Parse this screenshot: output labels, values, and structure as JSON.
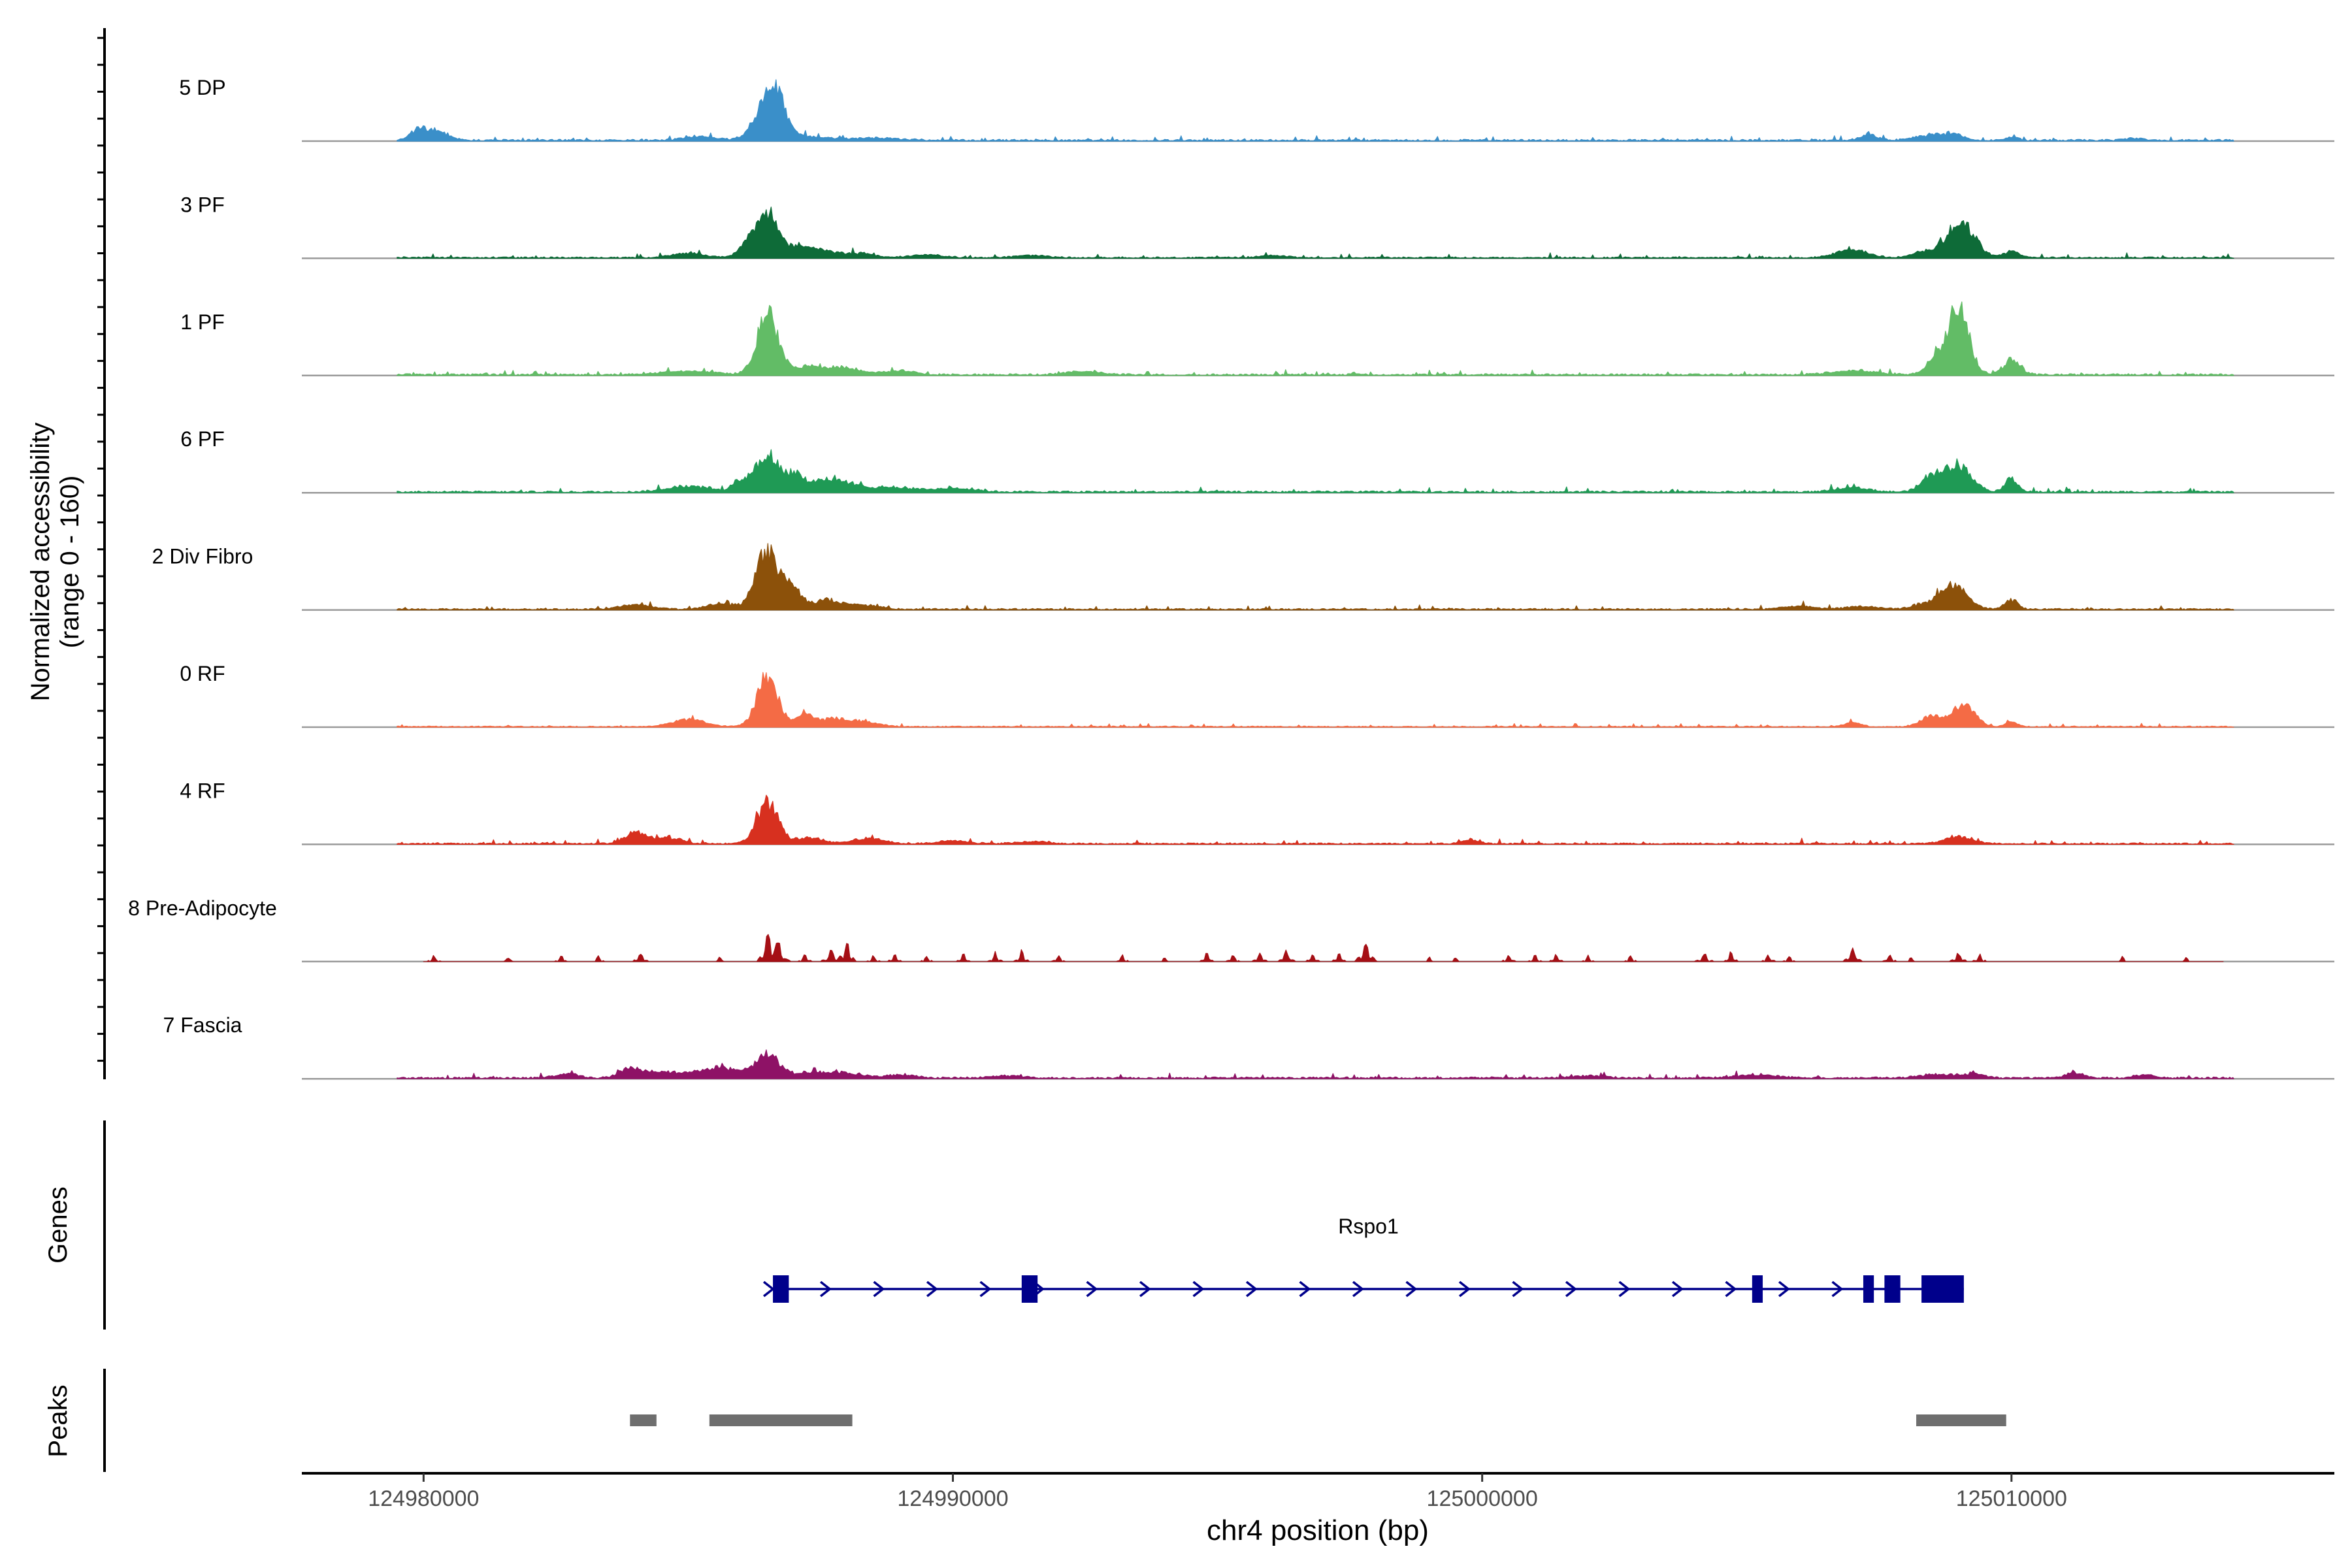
{
  "chart_data": {
    "type": "area",
    "title": "",
    "ylabel_line1": "Normalized accessibility",
    "ylabel_line2": "(range 0 - 160)",
    "xlabel": "chr4 position (bp)",
    "xlim": [
      124977700,
      125016100
    ],
    "x_ticks": [
      124980000,
      124990000,
      125000000,
      125010000
    ],
    "x_tick_labels": [
      "124980000",
      "124990000",
      "125000000",
      "125010000"
    ],
    "track_range": [
      0,
      160
    ],
    "tracks": [
      {
        "name": "5 DP",
        "color": "#3A8FC9",
        "baseline": 2.5,
        "noise": 2.5,
        "sparse": false,
        "start": 124979500,
        "end": 125014200,
        "peaks": [
          [
            124979900,
            150,
            10
          ],
          [
            124980200,
            250,
            13
          ],
          [
            124985200,
            300,
            5
          ],
          [
            124986500,
            230,
            52
          ],
          [
            124986700,
            140,
            30
          ],
          [
            124987000,
            500,
            6
          ],
          [
            124988500,
            500,
            3
          ],
          [
            125007300,
            150,
            8
          ],
          [
            125008500,
            300,
            7
          ],
          [
            125008900,
            200,
            6
          ],
          [
            125010000,
            120,
            4
          ],
          [
            125012300,
            150,
            3
          ]
        ]
      },
      {
        "name": "3 PF",
        "color": "#0E6B38",
        "baseline": 2,
        "noise": 2.5,
        "sparse": false,
        "start": 124979500,
        "end": 125014200,
        "peaks": [
          [
            124985000,
            300,
            6
          ],
          [
            124986100,
            150,
            15
          ],
          [
            124986500,
            220,
            60
          ],
          [
            124987100,
            150,
            14
          ],
          [
            124987500,
            250,
            10
          ],
          [
            124988200,
            300,
            6
          ],
          [
            124989500,
            300,
            4
          ],
          [
            124991500,
            300,
            3
          ],
          [
            124996000,
            250,
            3
          ],
          [
            125007000,
            300,
            10
          ],
          [
            125008400,
            250,
            8
          ],
          [
            125009000,
            250,
            35
          ],
          [
            125009200,
            200,
            15
          ],
          [
            125010000,
            150,
            8
          ]
        ]
      },
      {
        "name": "1 PF",
        "color": "#62BC66",
        "baseline": 2.5,
        "noise": 2.5,
        "sparse": false,
        "start": 124979500,
        "end": 125014200,
        "peaks": [
          [
            124985000,
            500,
            5
          ],
          [
            124986500,
            200,
            80
          ],
          [
            124987300,
            300,
            12
          ],
          [
            124988000,
            300,
            8
          ],
          [
            124989000,
            300,
            5
          ],
          [
            124992500,
            300,
            5
          ],
          [
            125007000,
            400,
            6
          ],
          [
            125008600,
            200,
            20
          ],
          [
            125009000,
            200,
            85
          ],
          [
            125010000,
            150,
            20
          ]
        ]
      },
      {
        "name": "6 PF",
        "color": "#1F9A55",
        "baseline": 2.5,
        "noise": 2.5,
        "sparse": false,
        "start": 124979500,
        "end": 125014200,
        "peaks": [
          [
            124985000,
            400,
            8
          ],
          [
            124986000,
            150,
            15
          ],
          [
            124986500,
            220,
            50
          ],
          [
            124987000,
            150,
            20
          ],
          [
            124987500,
            300,
            15
          ],
          [
            124988000,
            300,
            8
          ],
          [
            124988800,
            400,
            6
          ],
          [
            124990000,
            400,
            5
          ],
          [
            125007000,
            300,
            6
          ],
          [
            125008500,
            200,
            20
          ],
          [
            125009000,
            250,
            35
          ],
          [
            125010000,
            120,
            18
          ]
        ]
      },
      {
        "name": "2 Div Fibro",
        "color": "#8C510A",
        "baseline": 2,
        "noise": 2.5,
        "sparse": false,
        "start": 124979500,
        "end": 125014200,
        "peaks": [
          [
            124984000,
            300,
            6
          ],
          [
            124985600,
            250,
            8
          ],
          [
            124986500,
            220,
            80
          ],
          [
            124987000,
            150,
            25
          ],
          [
            124987600,
            250,
            12
          ],
          [
            124988300,
            300,
            6
          ],
          [
            125006000,
            300,
            4
          ],
          [
            125007200,
            300,
            4
          ],
          [
            125008300,
            200,
            6
          ],
          [
            125008900,
            250,
            35
          ],
          [
            125010000,
            120,
            12
          ]
        ]
      },
      {
        "name": "0 RF",
        "color": "#F46B45",
        "baseline": 1.5,
        "noise": 2,
        "sparse": false,
        "start": 124979500,
        "end": 125014200,
        "peaks": [
          [
            124985000,
            300,
            10
          ],
          [
            124986500,
            200,
            65
          ],
          [
            124987200,
            150,
            15
          ],
          [
            124987700,
            300,
            10
          ],
          [
            124988300,
            300,
            6
          ],
          [
            125007000,
            150,
            6
          ],
          [
            125008500,
            200,
            15
          ],
          [
            125009100,
            200,
            30
          ],
          [
            125010000,
            120,
            6
          ]
        ]
      },
      {
        "name": "4 RF",
        "color": "#D7301F",
        "baseline": 2,
        "noise": 2.5,
        "sparse": false,
        "start": 124979500,
        "end": 125014200,
        "peaks": [
          [
            124984000,
            200,
            15
          ],
          [
            124984600,
            250,
            8
          ],
          [
            124986500,
            200,
            55
          ],
          [
            124987300,
            250,
            8
          ],
          [
            124988400,
            300,
            7
          ],
          [
            124990000,
            300,
            4
          ],
          [
            124991500,
            300,
            3
          ],
          [
            124999800,
            150,
            5
          ],
          [
            125009000,
            250,
            10
          ]
        ]
      },
      {
        "name": "8 Pre-Adipocyte",
        "color": "#A50F15",
        "baseline": 0,
        "noise": 0,
        "sparse": true,
        "start": 124980000,
        "end": 125014000,
        "peaks": [
          [
            124980200,
            60,
            8
          ],
          [
            124981600,
            80,
            6
          ],
          [
            124982600,
            60,
            8
          ],
          [
            124983300,
            60,
            7
          ],
          [
            124984100,
            70,
            12
          ],
          [
            124985600,
            60,
            6
          ],
          [
            124986500,
            80,
            40
          ],
          [
            124986700,
            90,
            25
          ],
          [
            124987200,
            60,
            10
          ],
          [
            124987700,
            90,
            15
          ],
          [
            124988000,
            70,
            30
          ],
          [
            124988500,
            60,
            8
          ],
          [
            124988900,
            60,
            10
          ],
          [
            124989500,
            60,
            8
          ],
          [
            124990200,
            60,
            10
          ],
          [
            124990800,
            60,
            12
          ],
          [
            124991300,
            60,
            14
          ],
          [
            124992000,
            60,
            10
          ],
          [
            124993200,
            60,
            8
          ],
          [
            124994000,
            60,
            6
          ],
          [
            124994800,
            60,
            12
          ],
          [
            124995300,
            60,
            10
          ],
          [
            124995800,
            60,
            14
          ],
          [
            124996300,
            70,
            16
          ],
          [
            124996800,
            60,
            10
          ],
          [
            124997300,
            60,
            12
          ],
          [
            124997800,
            80,
            30
          ],
          [
            124999000,
            60,
            6
          ],
          [
            124999500,
            60,
            6
          ],
          [
            125000500,
            60,
            10
          ],
          [
            125001000,
            60,
            8
          ],
          [
            125001400,
            60,
            10
          ],
          [
            125002000,
            60,
            8
          ],
          [
            125002800,
            60,
            8
          ],
          [
            125004200,
            80,
            10
          ],
          [
            125004700,
            60,
            12
          ],
          [
            125005400,
            60,
            10
          ],
          [
            125005800,
            60,
            8
          ],
          [
            125007000,
            80,
            18
          ],
          [
            125007700,
            60,
            10
          ],
          [
            125008100,
            60,
            6
          ],
          [
            125009000,
            70,
            12
          ],
          [
            125009400,
            60,
            10
          ],
          [
            125012100,
            60,
            6
          ],
          [
            125013300,
            60,
            6
          ]
        ]
      },
      {
        "name": "7 Fascia",
        "color": "#8E1266",
        "baseline": 2.5,
        "noise": 2.5,
        "sparse": false,
        "start": 124979500,
        "end": 125014200,
        "peaks": [
          [
            124982700,
            200,
            6
          ],
          [
            124983900,
            200,
            12
          ],
          [
            124984500,
            300,
            8
          ],
          [
            124985300,
            300,
            9
          ],
          [
            124985800,
            300,
            10
          ],
          [
            124986500,
            200,
            35
          ],
          [
            124987300,
            300,
            8
          ],
          [
            124988000,
            300,
            6
          ],
          [
            124989000,
            300,
            4
          ],
          [
            124991000,
            300,
            3
          ],
          [
            125002000,
            300,
            3
          ],
          [
            125005200,
            400,
            4
          ],
          [
            125008600,
            300,
            5
          ],
          [
            125009300,
            200,
            5
          ],
          [
            125011200,
            150,
            8
          ],
          [
            125012500,
            200,
            4
          ]
        ]
      }
    ],
    "genes_label": "Genes",
    "peaks_label": "Peaks",
    "gene": {
      "name": "Rspo1",
      "color": "#00008B",
      "start": 124986600,
      "end": 125009100,
      "exons": [
        [
          124986600,
          124986900
        ],
        [
          124991300,
          124991600
        ],
        [
          125005100,
          125005300
        ],
        [
          125007200,
          125007400
        ],
        [
          125007600,
          125007900
        ],
        [
          125008300,
          125009100
        ]
      ]
    },
    "peak_regions": {
      "color": "#6E6E6E",
      "ranges": [
        [
          124983900,
          124984400
        ],
        [
          124985400,
          124988100
        ],
        [
          125008200,
          125009900
        ]
      ]
    }
  }
}
